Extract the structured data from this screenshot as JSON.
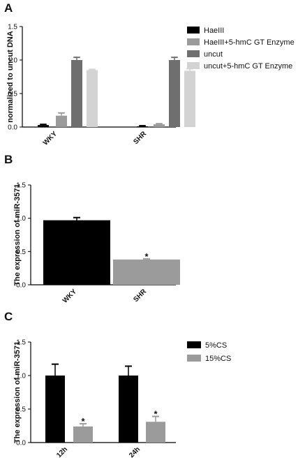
{
  "chart_data": [
    {
      "panel": "A",
      "type": "bar",
      "ylabel": "normalized to uncut DNA",
      "ylim": [
        0,
        1.5
      ],
      "yticks": [
        "0.0",
        "0.5",
        "1.0",
        "1.5"
      ],
      "categories": [
        "WKY",
        "SHR"
      ],
      "legend_position": "right",
      "series": [
        {
          "name": "HaeIII",
          "color": "#000000",
          "values": [
            0.03,
            0.01
          ],
          "errors": [
            0.01,
            0.01
          ]
        },
        {
          "name": "HaeIII+5-hmC GT Enzyme",
          "color": "#9b9b9b",
          "values": [
            0.17,
            0.04
          ],
          "errors": [
            0.04,
            0.01
          ]
        },
        {
          "name": "uncut",
          "color": "#6f6f6f",
          "values": [
            1.0,
            1.0
          ],
          "errors": [
            0.04,
            0.04
          ]
        },
        {
          "name": "uncut+5-hmC GT Enzyme",
          "color": "#d3d3d3",
          "values": [
            0.85,
            0.84
          ],
          "errors": [
            0.01,
            0.03
          ]
        }
      ]
    },
    {
      "panel": "B",
      "type": "bar",
      "ylabel": "The expression of miR-3571",
      "ylim": [
        0,
        1.5
      ],
      "yticks": [
        "0.0",
        "0.5",
        "1.0",
        "1.5"
      ],
      "categories": [
        "WKY",
        "SHR"
      ],
      "series": [
        {
          "name": "",
          "colors": [
            "#000000",
            "#9b9b9b"
          ],
          "values": [
            0.97,
            0.38
          ],
          "errors": [
            0.04,
            0.01
          ],
          "annotations": [
            "",
            "*"
          ]
        }
      ]
    },
    {
      "panel": "C",
      "type": "bar",
      "ylabel": "The expression of miR-3571",
      "ylim": [
        0,
        1.5
      ],
      "yticks": [
        "0.0",
        "0.5",
        "1.0",
        "1.5"
      ],
      "categories": [
        "12h",
        "24h"
      ],
      "legend_position": "right",
      "series": [
        {
          "name": "5%CS",
          "color": "#000000",
          "values": [
            1.0,
            1.0
          ],
          "errors": [
            0.17,
            0.14
          ],
          "annotations": [
            "",
            ""
          ]
        },
        {
          "name": "15%CS",
          "color": "#9b9b9b",
          "values": [
            0.24,
            0.31
          ],
          "errors": [
            0.04,
            0.08
          ],
          "annotations": [
            "*",
            "*"
          ]
        }
      ]
    }
  ]
}
